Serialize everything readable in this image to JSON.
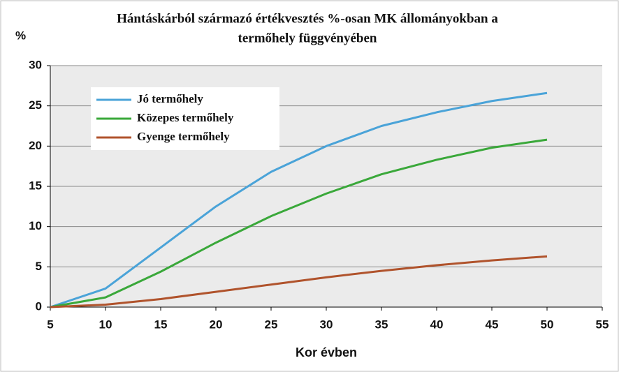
{
  "chart_data": {
    "type": "line",
    "title": [
      "Hántáskárból származó értékvesztés %-osan MK állományokban a",
      "termőhely függvényében"
    ],
    "ylabel": "%",
    "xlabel": "Kor évben",
    "x": [
      5,
      10,
      15,
      20,
      25,
      30,
      35,
      40,
      45,
      50
    ],
    "series": [
      {
        "name": "Jó termőhely",
        "color": "#4aa3d8",
        "values": [
          0,
          2.3,
          7.4,
          12.5,
          16.8,
          20.0,
          22.5,
          24.2,
          25.6,
          26.6
        ]
      },
      {
        "name": "Közepes termőhely",
        "color": "#3aa83a",
        "values": [
          0,
          1.2,
          4.4,
          8.0,
          11.3,
          14.1,
          16.5,
          18.3,
          19.8,
          20.8
        ]
      },
      {
        "name": "Gyenge termőhely",
        "color": "#b0532c",
        "values": [
          0,
          0.3,
          1.0,
          1.9,
          2.8,
          3.7,
          4.5,
          5.2,
          5.8,
          6.3
        ]
      }
    ],
    "xlim": [
      5,
      55
    ],
    "xticks": [
      5,
      10,
      15,
      20,
      25,
      30,
      35,
      40,
      45,
      50,
      55
    ],
    "ylim": [
      0,
      30
    ],
    "yticks": [
      0,
      5,
      10,
      15,
      20,
      25,
      30
    ],
    "grid": true,
    "legend": "upper left"
  }
}
